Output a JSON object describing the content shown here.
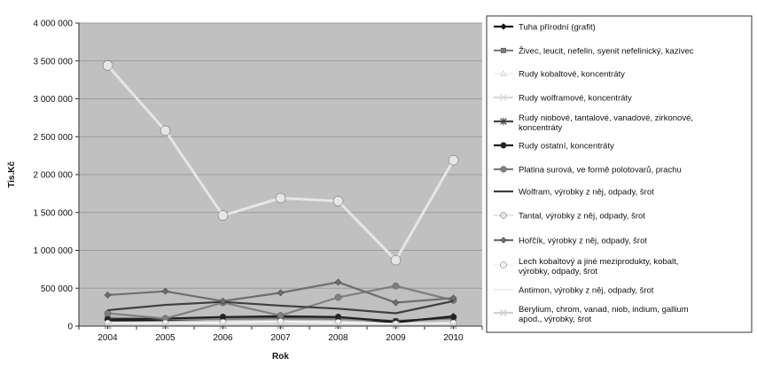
{
  "chart_data": {
    "type": "line",
    "xlabel": "Rok",
    "ylabel": "Tis.Kč",
    "x": [
      "2004",
      "2005",
      "2006",
      "2007",
      "2008",
      "2009",
      "2010"
    ],
    "ylim": [
      0,
      4000000
    ],
    "yticks": [
      0,
      500000,
      1000000,
      1500000,
      2000000,
      2500000,
      3000000,
      3500000,
      4000000
    ],
    "ytick_labels": [
      "0",
      "500 000",
      "1 000 000",
      "1 500 000",
      "2 000 000",
      "2 500 000",
      "3 000 000",
      "3 500 000",
      "4 000 000"
    ],
    "grid": true,
    "legend_position": "right",
    "plot_background": "#c0c0c0",
    "series": [
      {
        "name": "Tuha přírodní (grafit)",
        "values": [
          75000,
          80000,
          100000,
          120000,
          110000,
          50000,
          130000
        ],
        "color": "#111111",
        "marker": "diamond"
      },
      {
        "name": "Živec, leucit, nefelin, syenit nefelinický, kazivec",
        "values": [
          110000,
          90000,
          95000,
          100000,
          95000,
          70000,
          100000
        ],
        "color": "#808080",
        "marker": "square"
      },
      {
        "name": "Rudy kobaltové, koncentráty",
        "values": [
          5000,
          5000,
          5000,
          5000,
          5000,
          5000,
          5000
        ],
        "color": "#f2f2f2",
        "marker": "triangle"
      },
      {
        "name": "Rudy wolframové, koncentráty",
        "values": [
          20000,
          20000,
          20000,
          20000,
          20000,
          15000,
          20000
        ],
        "color": "#d9d9d9",
        "marker": "x"
      },
      {
        "name": "Rudy niobové, tantalové, vanadové, zirkonové, koncentráty",
        "values": [
          10000,
          10000,
          10000,
          10000,
          10000,
          10000,
          10000
        ],
        "color": "#444444",
        "marker": "star"
      },
      {
        "name": "Rudy ostatní, koncentráty",
        "values": [
          90000,
          100000,
          120000,
          130000,
          120000,
          60000,
          120000
        ],
        "color": "#222222",
        "marker": "circle"
      },
      {
        "name": "Platina surová, ve formě polotovarů, prachu",
        "values": [
          170000,
          100000,
          310000,
          140000,
          380000,
          530000,
          340000
        ],
        "color": "#7f7f7f",
        "marker": "circle"
      },
      {
        "name": "Wolfram, výrobky z něj, odpady, šrot",
        "values": [
          210000,
          280000,
          320000,
          270000,
          230000,
          170000,
          330000
        ],
        "color": "#3f3f3f",
        "marker": "none"
      },
      {
        "name": "Tantal, výrobky z něj, odpady, šrot",
        "values": [
          3440000,
          2580000,
          1460000,
          1690000,
          1650000,
          870000,
          2190000
        ],
        "color": "#e6e6e6",
        "marker": "circle"
      },
      {
        "name": "Hořčík, výrobky z něj, odpady, šrot",
        "values": [
          410000,
          460000,
          330000,
          440000,
          580000,
          310000,
          370000
        ],
        "color": "#6e6e6e",
        "marker": "diamond"
      },
      {
        "name": "Lech kobaltový a jiné meziprodukty, kobalt, výrobky, odpady, šrot",
        "values": [
          40000,
          40000,
          50000,
          60000,
          50000,
          30000,
          40000
        ],
        "color": "#f5f5f5",
        "marker": "circle"
      },
      {
        "name": "Antimon, výrobky z něj, odpady, šrot",
        "values": [
          25000,
          25000,
          25000,
          25000,
          25000,
          20000,
          25000
        ],
        "color": "#f0f0f0",
        "marker": "none"
      },
      {
        "name": "Berylium, chrom, vanad, niob, indium, gallium apod., výrobky, šrot",
        "values": [
          15000,
          15000,
          15000,
          15000,
          15000,
          10000,
          15000
        ],
        "color": "#cfcfcf",
        "marker": "x"
      }
    ]
  }
}
